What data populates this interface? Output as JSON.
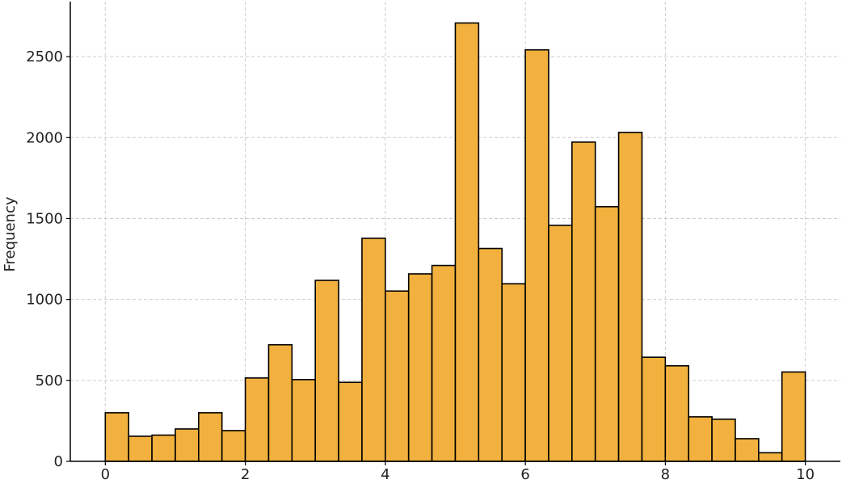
{
  "chart_data": {
    "type": "bar",
    "title": "",
    "xlabel": "",
    "ylabel": "Frequency",
    "bar_color": "#F2B13E",
    "edge_color": "#000000",
    "grid": true,
    "xlim": [
      -0.5,
      10.5
    ],
    "ylim": [
      0,
      2840
    ],
    "x_ticks": [
      0,
      2,
      4,
      6,
      8,
      10
    ],
    "y_ticks": [
      0,
      500,
      1000,
      1500,
      2000,
      2500
    ],
    "bin_start": 0,
    "bin_width": 0.3333,
    "values": [
      300,
      155,
      162,
      200,
      300,
      190,
      515,
      720,
      505,
      1118,
      488,
      1378,
      1052,
      1158,
      1210,
      2708,
      1315,
      1097,
      2542,
      1458,
      1972,
      1573,
      2032,
      643,
      590,
      275,
      260,
      140,
      53,
      552
    ]
  }
}
